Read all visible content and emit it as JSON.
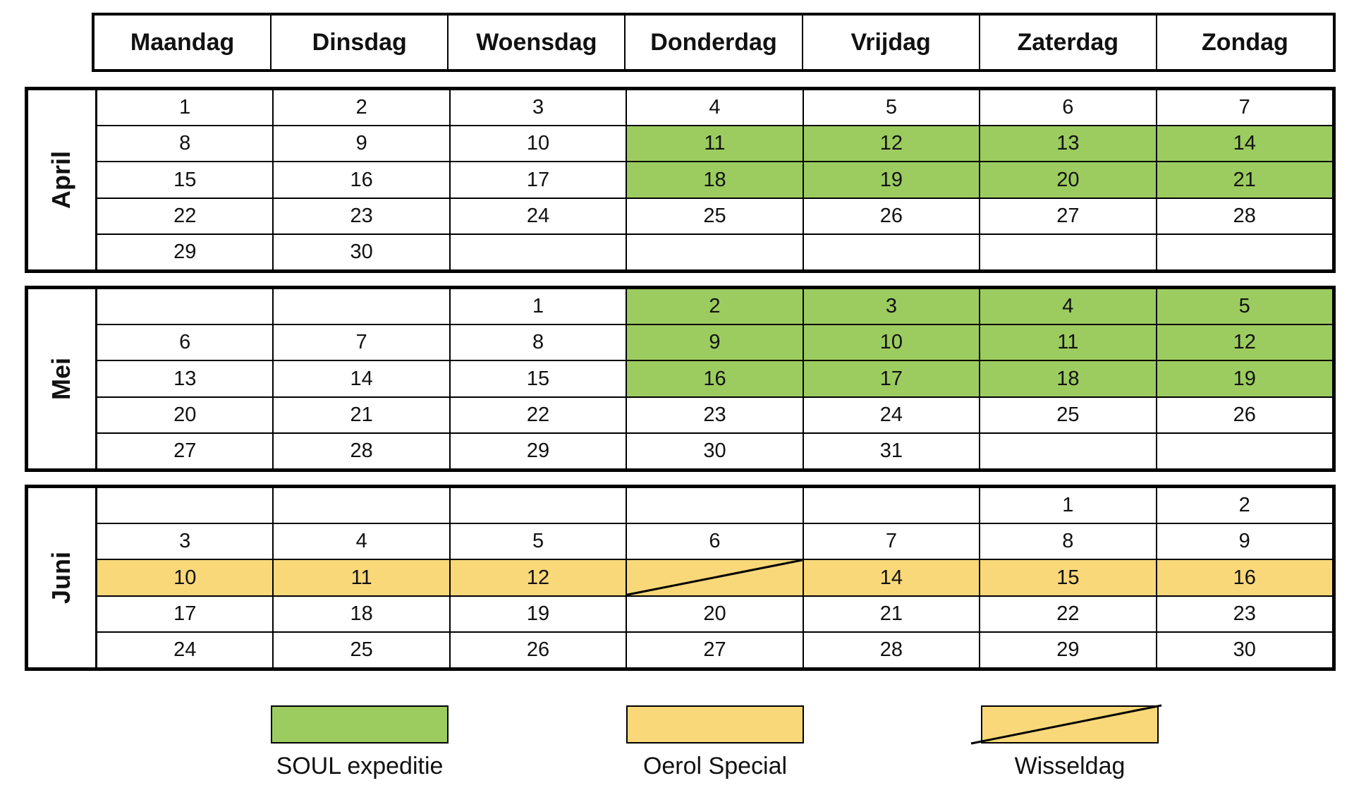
{
  "days": [
    "Maandag",
    "Dinsdag",
    "Woensdag",
    "Donderdag",
    "Vrijdag",
    "Zaterdag",
    "Zondag"
  ],
  "months": [
    {
      "name": "April",
      "rows": [
        [
          "1",
          "2",
          "3",
          "4",
          "5",
          "6",
          "7"
        ],
        [
          "8",
          "9",
          "10",
          "11",
          "12",
          "13",
          "14"
        ],
        [
          "15",
          "16",
          "17",
          "18",
          "19",
          "20",
          "21"
        ],
        [
          "22",
          "23",
          "24",
          "25",
          "26",
          "27",
          "28"
        ],
        [
          "29",
          "30",
          "",
          "",
          "",
          "",
          ""
        ]
      ],
      "status": [
        [
          "",
          "",
          "",
          "",
          "",
          "",
          ""
        ],
        [
          "",
          "",
          "",
          "soul",
          "soul",
          "soul",
          "soul"
        ],
        [
          "",
          "",
          "",
          "soul",
          "soul",
          "soul",
          "soul"
        ],
        [
          "",
          "",
          "",
          "",
          "",
          "",
          ""
        ],
        [
          "",
          "",
          "",
          "",
          "",
          "",
          ""
        ]
      ]
    },
    {
      "name": "Mei",
      "rows": [
        [
          "",
          "",
          "1",
          "2",
          "3",
          "4",
          "5"
        ],
        [
          "6",
          "7",
          "8",
          "9",
          "10",
          "11",
          "12"
        ],
        [
          "13",
          "14",
          "15",
          "16",
          "17",
          "18",
          "19"
        ],
        [
          "20",
          "21",
          "22",
          "23",
          "24",
          "25",
          "26"
        ],
        [
          "27",
          "28",
          "29",
          "30",
          "31",
          "",
          ""
        ]
      ],
      "status": [
        [
          "",
          "",
          "",
          "soul",
          "soul",
          "soul",
          "soul"
        ],
        [
          "",
          "",
          "",
          "soul",
          "soul",
          "soul",
          "soul"
        ],
        [
          "",
          "",
          "",
          "soul",
          "soul",
          "soul",
          "soul"
        ],
        [
          "",
          "",
          "",
          "",
          "",
          "",
          ""
        ],
        [
          "",
          "",
          "",
          "",
          "",
          "",
          ""
        ]
      ]
    },
    {
      "name": "Juni",
      "rows": [
        [
          "",
          "",
          "",
          "",
          "",
          "1",
          "2"
        ],
        [
          "3",
          "4",
          "5",
          "6",
          "7",
          "8",
          "9"
        ],
        [
          "10",
          "11",
          "12",
          "",
          "14",
          "15",
          "16"
        ],
        [
          "17",
          "18",
          "19",
          "20",
          "21",
          "22",
          "23"
        ],
        [
          "24",
          "25",
          "26",
          "27",
          "28",
          "29",
          "30"
        ]
      ],
      "status": [
        [
          "",
          "",
          "",
          "",
          "",
          "",
          ""
        ],
        [
          "",
          "",
          "",
          "",
          "",
          "",
          ""
        ],
        [
          "oerol",
          "oerol",
          "oerol",
          "wissel",
          "oerol",
          "oerol",
          "oerol"
        ],
        [
          "",
          "",
          "",
          "",
          "",
          "",
          ""
        ],
        [
          "",
          "",
          "",
          "",
          "",
          "",
          ""
        ]
      ]
    }
  ],
  "legend": [
    {
      "key": "soul",
      "label": "SOUL expeditie",
      "color": "#9ccc5f"
    },
    {
      "key": "oerol",
      "label": "Oerol Special",
      "color": "#f8d878"
    },
    {
      "key": "wissel",
      "label": "Wisseldag",
      "color": "#f8d878"
    }
  ],
  "colors": {
    "soul": "#9ccc5f",
    "oerol": "#f8d878",
    "border": "#000000"
  }
}
